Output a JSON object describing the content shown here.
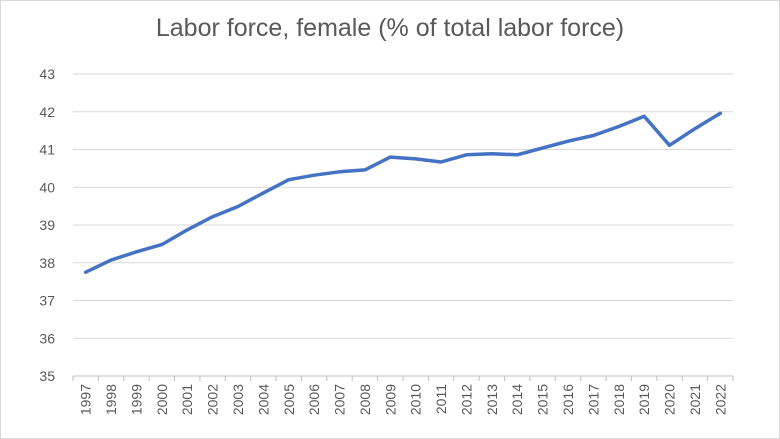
{
  "chart_data": {
    "type": "line",
    "title": "Labor force, female (% of total labor force)",
    "x": [
      "1997",
      "1998",
      "1999",
      "2000",
      "2001",
      "2002",
      "2003",
      "2004",
      "2005",
      "2006",
      "2007",
      "2008",
      "2009",
      "2010",
      "2011",
      "2012",
      "2013",
      "2014",
      "2015",
      "2016",
      "2017",
      "2018",
      "2019",
      "2020",
      "2021",
      "2022"
    ],
    "series": [
      {
        "values": [
          37.75,
          38.07,
          38.29,
          38.48,
          38.87,
          39.22,
          39.49,
          39.85,
          40.2,
          40.32,
          40.41,
          40.46,
          40.8,
          40.75,
          40.67,
          40.86,
          40.89,
          40.86,
          41.04,
          41.22,
          41.37,
          41.61,
          41.88,
          41.11,
          41.55,
          41.96
        ],
        "color": "#4472C4"
      }
    ],
    "ylim": [
      35,
      43
    ],
    "yticks": [
      35,
      36,
      37,
      38,
      39,
      40,
      41,
      42,
      43
    ],
    "grid": true,
    "legend": "none"
  }
}
